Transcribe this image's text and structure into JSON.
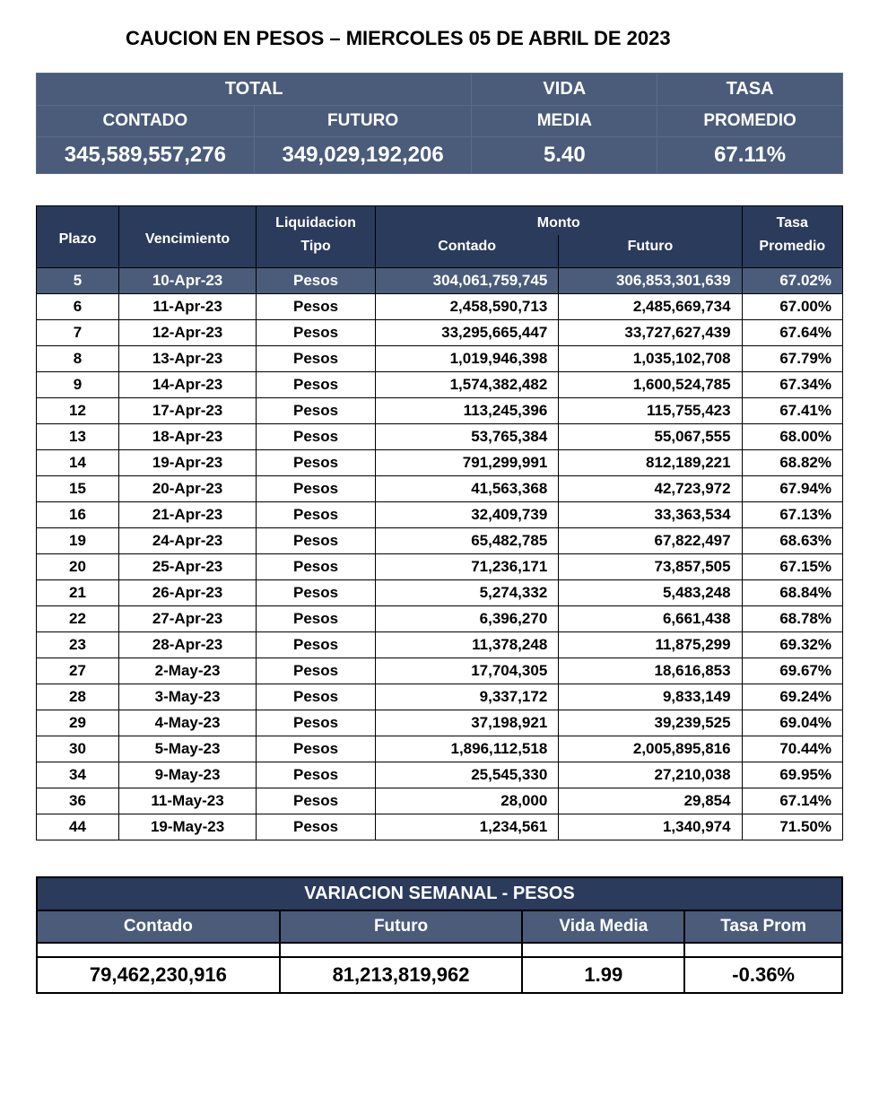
{
  "title": "CAUCION EN PESOS – MIERCOLES 05 DE ABRIL DE 2023",
  "summary": {
    "headers1": {
      "total": "TOTAL",
      "vida": "VIDA",
      "tasa": "TASA"
    },
    "headers2": {
      "contado": "CONTADO",
      "futuro": "FUTURO",
      "media": "MEDIA",
      "promedio": "PROMEDIO"
    },
    "values": {
      "contado": "345,589,557,276",
      "futuro": "349,029,192,206",
      "media": "5.40",
      "promedio": "67.11%"
    },
    "col_widths": [
      "27%",
      "27%",
      "23%",
      "23%"
    ]
  },
  "detail": {
    "headers": {
      "plazo": "Plazo",
      "vencimiento": "Vencimiento",
      "liquidacion": "Liquidacion",
      "tipo": "Tipo",
      "monto": "Monto",
      "contado": "Contado",
      "futuro": "Futuro",
      "tasa": "Tasa",
      "promedio": "Promedio"
    },
    "rows": [
      {
        "plazo": "5",
        "venc": "10-Apr-23",
        "tipo": "Pesos",
        "contado": "304,061,759,745",
        "futuro": "306,853,301,639",
        "tasa": "67.02%",
        "hl": true
      },
      {
        "plazo": "6",
        "venc": "11-Apr-23",
        "tipo": "Pesos",
        "contado": "2,458,590,713",
        "futuro": "2,485,669,734",
        "tasa": "67.00%",
        "hl": false
      },
      {
        "plazo": "7",
        "venc": "12-Apr-23",
        "tipo": "Pesos",
        "contado": "33,295,665,447",
        "futuro": "33,727,627,439",
        "tasa": "67.64%",
        "hl": false
      },
      {
        "plazo": "8",
        "venc": "13-Apr-23",
        "tipo": "Pesos",
        "contado": "1,019,946,398",
        "futuro": "1,035,102,708",
        "tasa": "67.79%",
        "hl": false
      },
      {
        "plazo": "9",
        "venc": "14-Apr-23",
        "tipo": "Pesos",
        "contado": "1,574,382,482",
        "futuro": "1,600,524,785",
        "tasa": "67.34%",
        "hl": false
      },
      {
        "plazo": "12",
        "venc": "17-Apr-23",
        "tipo": "Pesos",
        "contado": "113,245,396",
        "futuro": "115,755,423",
        "tasa": "67.41%",
        "hl": false
      },
      {
        "plazo": "13",
        "venc": "18-Apr-23",
        "tipo": "Pesos",
        "contado": "53,765,384",
        "futuro": "55,067,555",
        "tasa": "68.00%",
        "hl": false
      },
      {
        "plazo": "14",
        "venc": "19-Apr-23",
        "tipo": "Pesos",
        "contado": "791,299,991",
        "futuro": "812,189,221",
        "tasa": "68.82%",
        "hl": false
      },
      {
        "plazo": "15",
        "venc": "20-Apr-23",
        "tipo": "Pesos",
        "contado": "41,563,368",
        "futuro": "42,723,972",
        "tasa": "67.94%",
        "hl": false
      },
      {
        "plazo": "16",
        "venc": "21-Apr-23",
        "tipo": "Pesos",
        "contado": "32,409,739",
        "futuro": "33,363,534",
        "tasa": "67.13%",
        "hl": false
      },
      {
        "plazo": "19",
        "venc": "24-Apr-23",
        "tipo": "Pesos",
        "contado": "65,482,785",
        "futuro": "67,822,497",
        "tasa": "68.63%",
        "hl": false
      },
      {
        "plazo": "20",
        "venc": "25-Apr-23",
        "tipo": "Pesos",
        "contado": "71,236,171",
        "futuro": "73,857,505",
        "tasa": "67.15%",
        "hl": false
      },
      {
        "plazo": "21",
        "venc": "26-Apr-23",
        "tipo": "Pesos",
        "contado": "5,274,332",
        "futuro": "5,483,248",
        "tasa": "68.84%",
        "hl": false
      },
      {
        "plazo": "22",
        "venc": "27-Apr-23",
        "tipo": "Pesos",
        "contado": "6,396,270",
        "futuro": "6,661,438",
        "tasa": "68.78%",
        "hl": false
      },
      {
        "plazo": "23",
        "venc": "28-Apr-23",
        "tipo": "Pesos",
        "contado": "11,378,248",
        "futuro": "11,875,299",
        "tasa": "69.32%",
        "hl": false
      },
      {
        "plazo": "27",
        "venc": "2-May-23",
        "tipo": "Pesos",
        "contado": "17,704,305",
        "futuro": "18,616,853",
        "tasa": "69.67%",
        "hl": false
      },
      {
        "plazo": "28",
        "venc": "3-May-23",
        "tipo": "Pesos",
        "contado": "9,337,172",
        "futuro": "9,833,149",
        "tasa": "69.24%",
        "hl": false
      },
      {
        "plazo": "29",
        "venc": "4-May-23",
        "tipo": "Pesos",
        "contado": "37,198,921",
        "futuro": "39,239,525",
        "tasa": "69.04%",
        "hl": false
      },
      {
        "plazo": "30",
        "venc": "5-May-23",
        "tipo": "Pesos",
        "contado": "1,896,112,518",
        "futuro": "2,005,895,816",
        "tasa": "70.44%",
        "hl": false
      },
      {
        "plazo": "34",
        "venc": "9-May-23",
        "tipo": "Pesos",
        "contado": "25,545,330",
        "futuro": "27,210,038",
        "tasa": "69.95%",
        "hl": false
      },
      {
        "plazo": "36",
        "venc": "11-May-23",
        "tipo": "Pesos",
        "contado": "28,000",
        "futuro": "29,854",
        "tasa": "67.14%",
        "hl": false
      },
      {
        "plazo": "44",
        "venc": "19-May-23",
        "tipo": "Pesos",
        "contado": "1,234,561",
        "futuro": "1,340,974",
        "tasa": "71.50%",
        "hl": false
      }
    ]
  },
  "variation": {
    "title": "VARIACION SEMANAL - PESOS",
    "headers": {
      "contado": "Contado",
      "futuro": "Futuro",
      "vida": "Vida Media",
      "tasa": "Tasa Prom"
    },
    "values": {
      "contado": "79,462,230,916",
      "futuro": "81,213,819,962",
      "vida": "1.99",
      "tasa": "-0.36%"
    }
  },
  "colors": {
    "header_dark": "#2a3b5c",
    "header_mid": "#4a5c7a",
    "text_white": "#ffffff",
    "text_black": "#000000",
    "border": "#000000"
  }
}
